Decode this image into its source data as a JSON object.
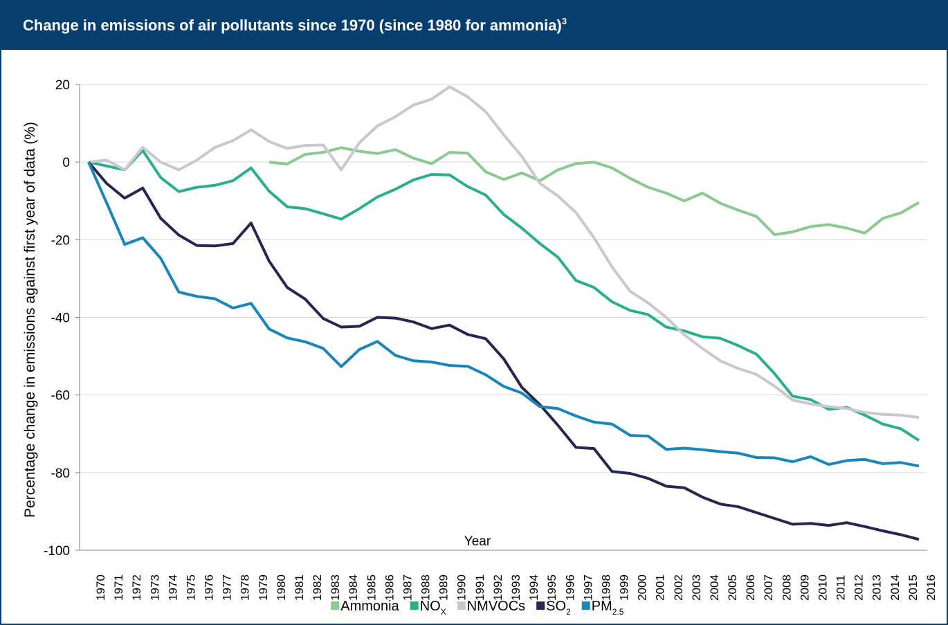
{
  "chart_data": {
    "type": "line",
    "title": "Change in emissions of air pollutants since 1970 (since 1980 for ammonia)",
    "title_superscript": "3",
    "x_label": "Year",
    "y_label": "Percentage change in emissions against first year of data (%)",
    "categories": [
      "1970",
      "1971",
      "1972",
      "1973",
      "1974",
      "1975",
      "1976",
      "1977",
      "1978",
      "1979",
      "1980",
      "1981",
      "1982",
      "1983",
      "1984",
      "1985",
      "1986",
      "1987",
      "1988",
      "1989",
      "1990",
      "1991",
      "1992",
      "1993",
      "1994",
      "1995",
      "1996",
      "1997",
      "1998",
      "1999",
      "2000",
      "2001",
      "2002",
      "2003",
      "2004",
      "2005",
      "2006",
      "2007",
      "2008",
      "2009",
      "2010",
      "2011",
      "2012",
      "2013",
      "2014",
      "2015",
      "2016"
    ],
    "ylim": [
      -100,
      20
    ],
    "yticks": [
      -100,
      -80,
      -60,
      -40,
      -20,
      0,
      20
    ],
    "grid": true,
    "legend": "bottom",
    "series": [
      {
        "name": "Ammonia",
        "color": "#8cc992",
        "values": [
          null,
          null,
          null,
          null,
          null,
          null,
          null,
          null,
          null,
          null,
          0,
          -0.5,
          2,
          2.5,
          3.7,
          2.8,
          2.2,
          3.2,
          1,
          -0.4,
          2.5,
          2.3,
          -2.5,
          -4.5,
          -2.8,
          -4.8,
          -2,
          -0.4,
          0,
          -1.5,
          -4.2,
          -6.5,
          -8,
          -10,
          -8,
          -10.6,
          -12.4,
          -14,
          -18.7,
          -18,
          -16.6,
          -16.1,
          -17,
          -18.3,
          -14.5,
          -13.1,
          -10.4
        ]
      },
      {
        "name": "NO",
        "name_subscript": "X",
        "color": "#2bae8c",
        "values": [
          0,
          -1,
          -2,
          3,
          -4,
          -7.6,
          -6.5,
          -6,
          -4.8,
          -1.5,
          -7.5,
          -11.5,
          -12,
          -13.3,
          -14.7,
          -12,
          -9,
          -7,
          -4.6,
          -3.2,
          -3.3,
          -6.3,
          -8.5,
          -13.5,
          -17,
          -21,
          -24.5,
          -30.5,
          -32.3,
          -36,
          -38.2,
          -39.3,
          -42.5,
          -43.5,
          -45,
          -45.4,
          -47.3,
          -49.5,
          -54.5,
          -60.3,
          -61.2,
          -63.7,
          -63.2,
          -65.2,
          -67.5,
          -68.7,
          -71.7
        ]
      },
      {
        "name": "NMVOCs",
        "color": "#c8c8d0",
        "values": [
          0,
          0.5,
          -2,
          3.8,
          0,
          -2,
          0.5,
          3.8,
          5.5,
          8.3,
          5.3,
          3.5,
          4.3,
          4.4,
          -2,
          5,
          9.3,
          11.7,
          14.7,
          16.2,
          19.4,
          16.8,
          13,
          7,
          1.5,
          -5.5,
          -8.7,
          -13,
          -19.5,
          -27,
          -33.3,
          -36.3,
          -40,
          -44.5,
          -48,
          -51.2,
          -53.2,
          -54.7,
          -57.7,
          -61.3,
          -62.3,
          -63,
          -63.5,
          -64.5,
          -65,
          -65.2,
          -65.8
        ]
      },
      {
        "name": "SO",
        "name_subscript": "2",
        "color": "#27264f",
        "values": [
          0,
          -5.5,
          -9.3,
          -6.7,
          -14.5,
          -18.8,
          -21.5,
          -21.6,
          -21,
          -15.7,
          -25.5,
          -32.3,
          -35.3,
          -40.3,
          -42.5,
          -42.3,
          -40,
          -40.2,
          -41.2,
          -42.9,
          -42,
          -44.4,
          -45.5,
          -50.7,
          -58,
          -62.5,
          -67.8,
          -73.5,
          -73.8,
          -79.7,
          -80.2,
          -81.5,
          -83.5,
          -83.9,
          -86.3,
          -88.1,
          -88.8,
          -90.3,
          -91.8,
          -93.3,
          -93.1,
          -93.6,
          -92.9,
          -93.9,
          -95,
          -96,
          -97.2
        ]
      },
      {
        "name": "PM",
        "name_subscript": "2.5",
        "color": "#1a85b8",
        "values": [
          0,
          -10.5,
          -21.2,
          -19.5,
          -24.8,
          -33.5,
          -34.6,
          -35.2,
          -37.6,
          -36.4,
          -43,
          -45.3,
          -46.3,
          -48,
          -52.7,
          -48.3,
          -46.2,
          -49.8,
          -51.2,
          -51.5,
          -52.4,
          -52.6,
          -54.8,
          -57.8,
          -59.5,
          -63,
          -63.5,
          -65.4,
          -67,
          -67.5,
          -70.4,
          -70.6,
          -74,
          -73.7,
          -74.1,
          -74.6,
          -75,
          -76.1,
          -76.2,
          -77.2,
          -75.9,
          -77.9,
          -76.9,
          -76.6,
          -77.7,
          -77.4,
          -78.3
        ]
      }
    ]
  }
}
